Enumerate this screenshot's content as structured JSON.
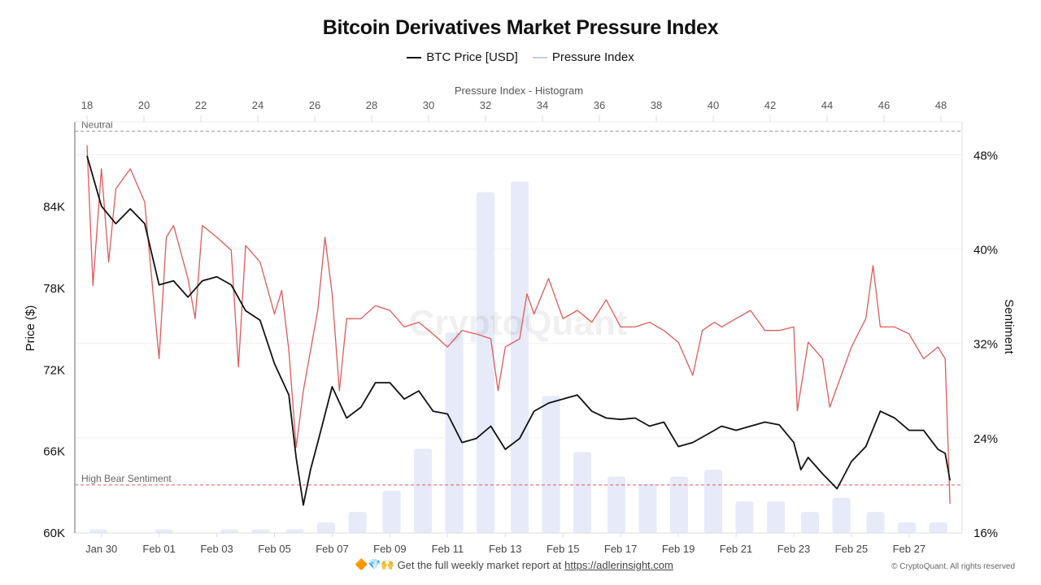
{
  "title": "Bitcoin Derivatives Market Pressure Index",
  "legend": [
    {
      "label": "BTC Price [USD]",
      "color": "#111111"
    },
    {
      "label": "Pressure Index",
      "color": "#c5cbf0"
    }
  ],
  "footer": {
    "emoji": "🔶💎🙌",
    "text": "Get the full weekly market report at",
    "link": "https://adlerinsight.com"
  },
  "copyright": "© CryptoQuant. All rights reserved",
  "watermark": "CryptoQuant",
  "chart_data": {
    "type": "line",
    "xlabel": "",
    "x_ticks": [
      "Jan 30",
      "Feb 01",
      "Feb 03",
      "Feb 05",
      "Feb 07",
      "Feb 09",
      "Feb 11",
      "Feb 13",
      "Feb 15",
      "Feb 17",
      "Feb 19",
      "Feb 21",
      "Feb 23",
      "Feb 25",
      "Feb 27"
    ],
    "xlim": [
      "Jan 29 10:00",
      "Feb 28 14:00"
    ],
    "y_left": {
      "label": "Price ($)",
      "ticks": [
        "60K",
        "66K",
        "72K",
        "78K",
        "84K"
      ],
      "tick_values": [
        60000,
        66000,
        72000,
        78000,
        84000
      ],
      "lim": [
        60000,
        88700
      ]
    },
    "y_right": {
      "label": "Sentiment",
      "ticks": [
        "16%",
        "24%",
        "32%",
        "40%",
        "48%"
      ],
      "tick_values": [
        16,
        24,
        32,
        40,
        48
      ],
      "lim": [
        16,
        50.3
      ]
    },
    "grid": true,
    "reference_lines": [
      {
        "label": "Neutral",
        "value": 50,
        "axis": "right",
        "color": "#999999",
        "style": "dashed"
      },
      {
        "label": "High Bear Sentiment",
        "value": 20,
        "axis": "right",
        "color": "#e05a5a",
        "style": "dashed"
      }
    ],
    "series": [
      {
        "name": "BTC Price [USD]",
        "axis": "left",
        "color": "#111111",
        "points": [
          [
            "Jan 29 12:00",
            87700
          ],
          [
            "Jan 30 00:00",
            84000
          ],
          [
            "Jan 30 12:00",
            82700
          ],
          [
            "Jan 31 00:00",
            83800
          ],
          [
            "Jan 31 12:00",
            82700
          ],
          [
            "Feb 01 00:00",
            78200
          ],
          [
            "Feb 01 12:00",
            78500
          ],
          [
            "Feb 02 00:00",
            77300
          ],
          [
            "Feb 02 12:00",
            78500
          ],
          [
            "Feb 03 00:00",
            78800
          ],
          [
            "Feb 03 12:00",
            78200
          ],
          [
            "Feb 04 00:00",
            76300
          ],
          [
            "Feb 04 12:00",
            75600
          ],
          [
            "Feb 05 00:00",
            72400
          ],
          [
            "Feb 05 12:00",
            70100
          ],
          [
            "Feb 05 18:00",
            65500
          ],
          [
            "Feb 06 00:00",
            62000
          ],
          [
            "Feb 06 06:00",
            64600
          ],
          [
            "Feb 06 12:00",
            66600
          ],
          [
            "Feb 07 00:00",
            70700
          ],
          [
            "Feb 07 12:00",
            68400
          ],
          [
            "Feb 08 00:00",
            69200
          ],
          [
            "Feb 08 12:00",
            71000
          ],
          [
            "Feb 09 00:00",
            71000
          ],
          [
            "Feb 09 12:00",
            69800
          ],
          [
            "Feb 10 00:00",
            70400
          ],
          [
            "Feb 10 12:00",
            68900
          ],
          [
            "Feb 11 00:00",
            68700
          ],
          [
            "Feb 11 12:00",
            66600
          ],
          [
            "Feb 12 00:00",
            66900
          ],
          [
            "Feb 12 12:00",
            67800
          ],
          [
            "Feb 13 00:00",
            66100
          ],
          [
            "Feb 13 12:00",
            66900
          ],
          [
            "Feb 14 00:00",
            68900
          ],
          [
            "Feb 14 12:00",
            69500
          ],
          [
            "Feb 15 00:00",
            69800
          ],
          [
            "Feb 15 12:00",
            70100
          ],
          [
            "Feb 16 00:00",
            68900
          ],
          [
            "Feb 16 12:00",
            68400
          ],
          [
            "Feb 17 00:00",
            68300
          ],
          [
            "Feb 17 12:00",
            68400
          ],
          [
            "Feb 18 00:00",
            67800
          ],
          [
            "Feb 18 12:00",
            68100
          ],
          [
            "Feb 19 00:00",
            66300
          ],
          [
            "Feb 19 12:00",
            66600
          ],
          [
            "Feb 20 00:00",
            67200
          ],
          [
            "Feb 20 12:00",
            67800
          ],
          [
            "Feb 21 00:00",
            67500
          ],
          [
            "Feb 21 12:00",
            67800
          ],
          [
            "Feb 22 00:00",
            68100
          ],
          [
            "Feb 22 12:00",
            67900
          ],
          [
            "Feb 23 00:00",
            66600
          ],
          [
            "Feb 23 06:00",
            64600
          ],
          [
            "Feb 23 12:00",
            65500
          ],
          [
            "Feb 24 00:00",
            64300
          ],
          [
            "Feb 24 12:00",
            63200
          ],
          [
            "Feb 25 00:00",
            65200
          ],
          [
            "Feb 25 12:00",
            66300
          ],
          [
            "Feb 26 00:00",
            68900
          ],
          [
            "Feb 26 12:00",
            68400
          ],
          [
            "Feb 27 00:00",
            67500
          ],
          [
            "Feb 27 12:00",
            67500
          ],
          [
            "Feb 28 00:00",
            66100
          ],
          [
            "Feb 28 06:00",
            65800
          ],
          [
            "Feb 28 10:00",
            63800
          ]
        ]
      },
      {
        "name": "Sentiment",
        "axis": "right",
        "color": "#e05a5a",
        "points": [
          [
            "Jan 29 12:00",
            48.8
          ],
          [
            "Jan 29 17:00",
            36.9
          ],
          [
            "Jan 30 00:00",
            46.8
          ],
          [
            "Jan 30 06:00",
            38.9
          ],
          [
            "Jan 30 12:00",
            45.1
          ],
          [
            "Jan 31 00:00",
            46.8
          ],
          [
            "Jan 31 12:00",
            44.0
          ],
          [
            "Feb 01 00:00",
            30.7
          ],
          [
            "Feb 01 06:00",
            41.0
          ],
          [
            "Feb 01 12:00",
            42.0
          ],
          [
            "Feb 02 00:00",
            37.5
          ],
          [
            "Feb 02 06:00",
            34.1
          ],
          [
            "Feb 02 12:00",
            42.0
          ],
          [
            "Feb 03 00:00",
            41.0
          ],
          [
            "Feb 03 12:00",
            39.9
          ],
          [
            "Feb 03 18:00",
            30.0
          ],
          [
            "Feb 04 00:00",
            40.3
          ],
          [
            "Feb 04 12:00",
            38.9
          ],
          [
            "Feb 05 00:00",
            34.5
          ],
          [
            "Feb 05 06:00",
            36.5
          ],
          [
            "Feb 05 12:00",
            31.4
          ],
          [
            "Feb 05 18:00",
            23.2
          ],
          [
            "Feb 06 00:00",
            28.0
          ],
          [
            "Feb 06 06:00",
            31.4
          ],
          [
            "Feb 06 12:00",
            34.8
          ],
          [
            "Feb 06 18:00",
            41.0
          ],
          [
            "Feb 07 00:00",
            36.2
          ],
          [
            "Feb 07 06:00",
            28.0
          ],
          [
            "Feb 07 12:00",
            34.1
          ],
          [
            "Feb 08 00:00",
            34.1
          ],
          [
            "Feb 08 12:00",
            35.2
          ],
          [
            "Feb 09 00:00",
            34.8
          ],
          [
            "Feb 09 12:00",
            33.4
          ],
          [
            "Feb 10 00:00",
            33.8
          ],
          [
            "Feb 10 12:00",
            32.8
          ],
          [
            "Feb 11 00:00",
            31.7
          ],
          [
            "Feb 11 12:00",
            33.1
          ],
          [
            "Feb 12 00:00",
            32.8
          ],
          [
            "Feb 12 12:00",
            32.4
          ],
          [
            "Feb 12 18:00",
            28.0
          ],
          [
            "Feb 13 00:00",
            31.7
          ],
          [
            "Feb 13 12:00",
            32.4
          ],
          [
            "Feb 13 18:00",
            36.2
          ],
          [
            "Feb 14 00:00",
            34.5
          ],
          [
            "Feb 14 12:00",
            37.5
          ],
          [
            "Feb 15 00:00",
            34.1
          ],
          [
            "Feb 15 12:00",
            34.8
          ],
          [
            "Feb 16 00:00",
            33.8
          ],
          [
            "Feb 16 12:00",
            35.7
          ],
          [
            "Feb 17 00:00",
            33.4
          ],
          [
            "Feb 17 12:00",
            33.4
          ],
          [
            "Feb 18 00:00",
            33.8
          ],
          [
            "Feb 18 12:00",
            33.1
          ],
          [
            "Feb 19 00:00",
            32.1
          ],
          [
            "Feb 19 12:00",
            29.3
          ],
          [
            "Feb 19 20:00",
            33.1
          ],
          [
            "Feb 20 06:00",
            33.8
          ],
          [
            "Feb 20 12:00",
            33.4
          ],
          [
            "Feb 21 00:00",
            34.1
          ],
          [
            "Feb 21 12:00",
            34.8
          ],
          [
            "Feb 22 00:00",
            33.1
          ],
          [
            "Feb 22 12:00",
            33.1
          ],
          [
            "Feb 23 00:00",
            33.4
          ],
          [
            "Feb 23 03:00",
            26.3
          ],
          [
            "Feb 23 12:00",
            32.1
          ],
          [
            "Feb 24 00:00",
            30.7
          ],
          [
            "Feb 24 06:00",
            26.6
          ],
          [
            "Feb 25 00:00",
            31.7
          ],
          [
            "Feb 25 12:00",
            34.1
          ],
          [
            "Feb 25 18:00",
            38.6
          ],
          [
            "Feb 26 00:00",
            33.4
          ],
          [
            "Feb 26 12:00",
            33.4
          ],
          [
            "Feb 27 00:00",
            32.8
          ],
          [
            "Feb 27 12:00",
            30.7
          ],
          [
            "Feb 28 00:00",
            31.7
          ],
          [
            "Feb 28 06:00",
            30.7
          ],
          [
            "Feb 28 10:00",
            18.4
          ]
        ]
      }
    ],
    "histogram": {
      "title": "Pressure Index - Histogram",
      "x_ticks": [
        18,
        20,
        22,
        24,
        26,
        28,
        30,
        32,
        34,
        36,
        38,
        40,
        42,
        44,
        46,
        48
      ],
      "xlim": [
        17.9,
        49.0
      ],
      "ylim": [
        0,
        117
      ],
      "color": "#e6eaf9",
      "bins": [
        [
          18.4,
          1
        ],
        [
          20.7,
          1
        ],
        [
          23.0,
          1
        ],
        [
          24.1,
          1
        ],
        [
          25.3,
          1
        ],
        [
          26.4,
          3
        ],
        [
          27.5,
          6
        ],
        [
          28.7,
          12
        ],
        [
          29.8,
          24
        ],
        [
          30.9,
          57
        ],
        [
          32.0,
          97
        ],
        [
          33.2,
          100
        ],
        [
          34.3,
          39
        ],
        [
          35.4,
          23
        ],
        [
          36.6,
          16
        ],
        [
          37.7,
          14
        ],
        [
          38.8,
          16
        ],
        [
          40.0,
          18
        ],
        [
          41.1,
          9
        ],
        [
          42.2,
          9
        ],
        [
          43.4,
          6
        ],
        [
          44.5,
          10
        ],
        [
          45.7,
          6
        ],
        [
          46.8,
          3
        ],
        [
          47.9,
          3
        ]
      ]
    }
  }
}
